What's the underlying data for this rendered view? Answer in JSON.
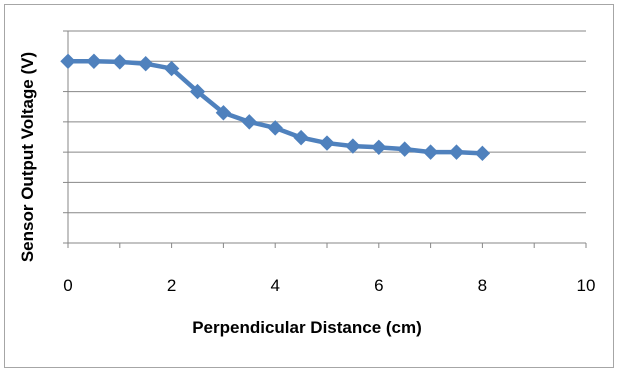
{
  "chart_data": {
    "type": "line",
    "title": "",
    "xlabel": "Perpendicular Distance (cm)",
    "ylabel": "Sensor Output Voltage (V)",
    "xlim": [
      0,
      10
    ],
    "ylim": [
      0,
      3.5
    ],
    "x_ticks": [
      0,
      2,
      4,
      6,
      8,
      10
    ],
    "x_tick_labels": [
      "0",
      "2",
      "4",
      "6",
      "8",
      "10"
    ],
    "y_tick_labels": [],
    "grid": "horizontal",
    "legend": "none",
    "series": [
      {
        "color": "#4f81bd",
        "marker": "diamond",
        "x": [
          0,
          0.5,
          1,
          1.5,
          2,
          2.5,
          3,
          3.5,
          4,
          4.5,
          5,
          5.5,
          6,
          6.5,
          7,
          7.5,
          8
        ],
        "y": [
          3.0,
          3.0,
          2.99,
          2.96,
          2.88,
          2.5,
          2.15,
          2.0,
          1.9,
          1.74,
          1.65,
          1.6,
          1.58,
          1.55,
          1.5,
          1.5,
          1.48
        ]
      }
    ]
  }
}
